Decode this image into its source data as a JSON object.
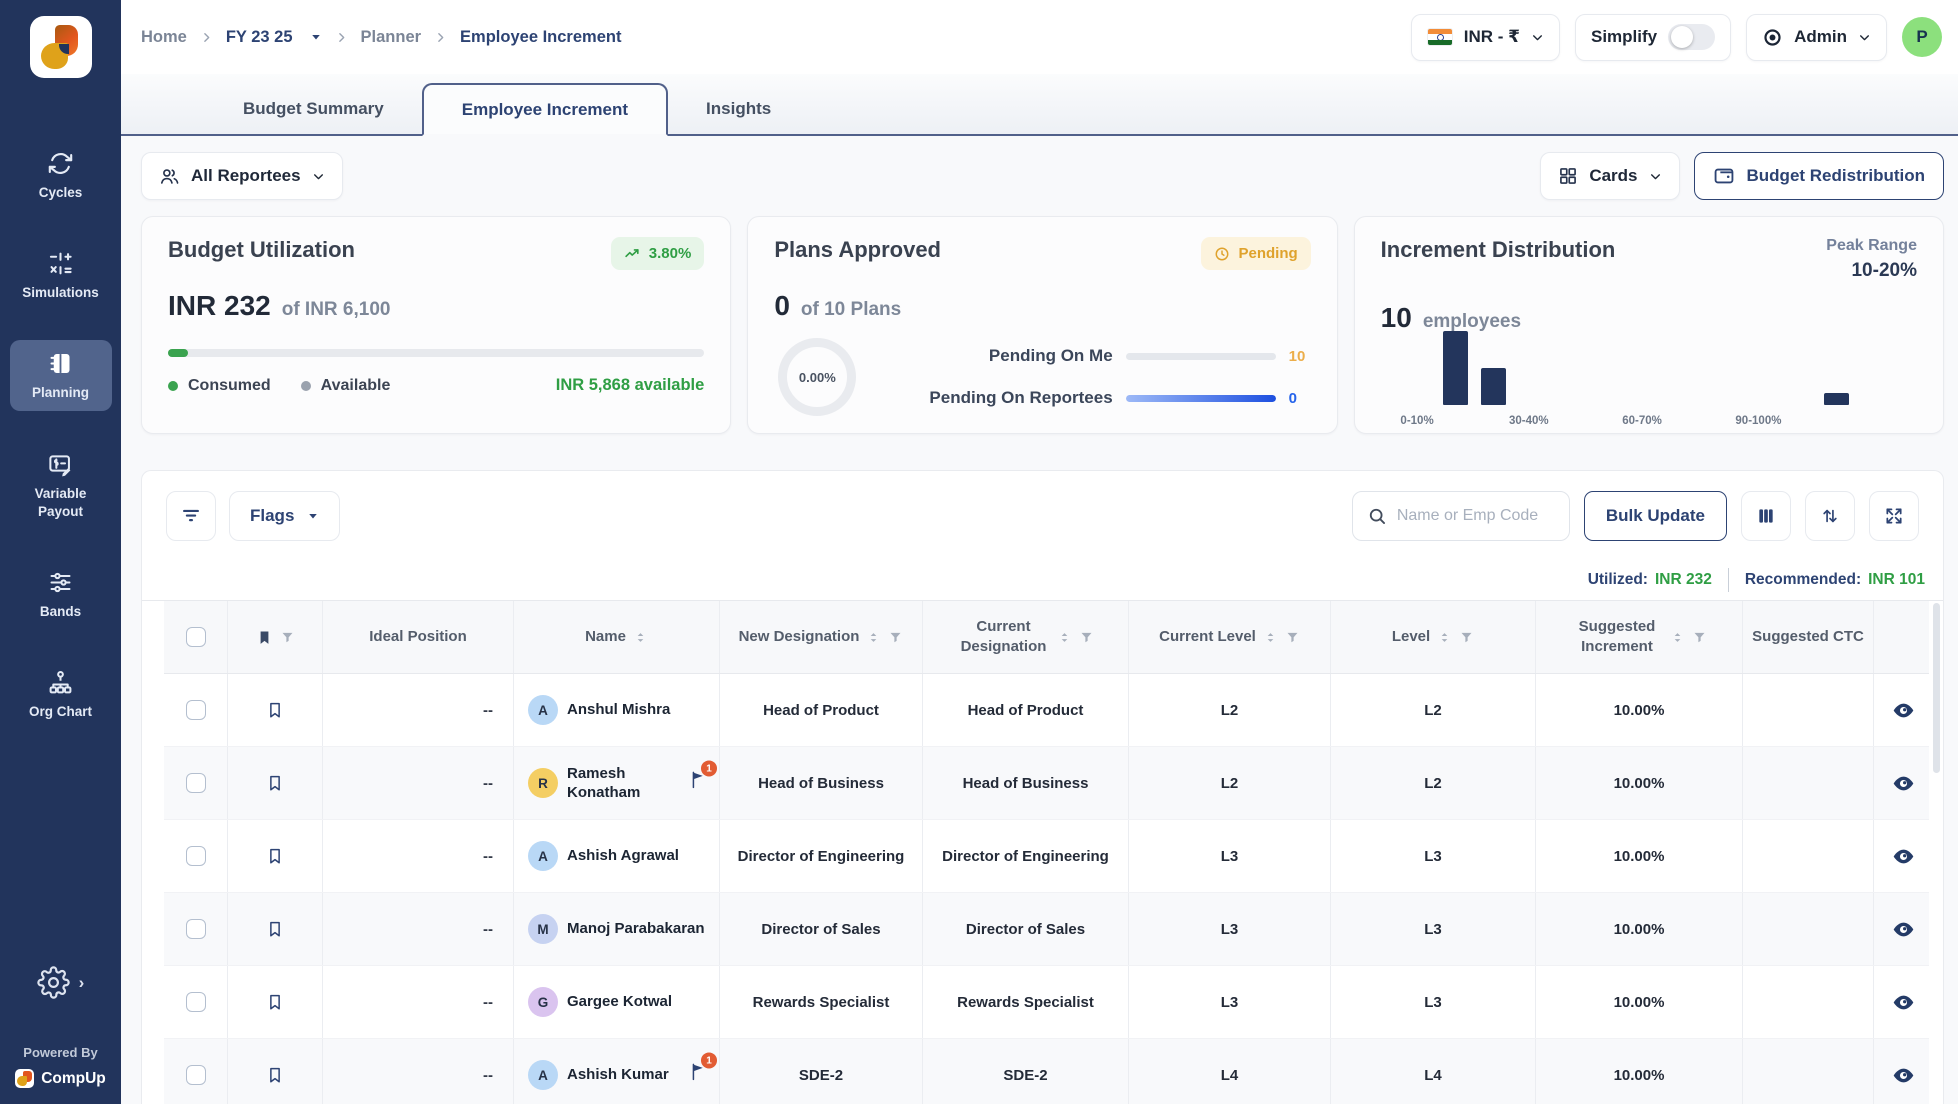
{
  "colors": {
    "sidebar_bg": "#22345c",
    "accent_navy": "#2d4373",
    "green": "#2f9e44",
    "amber": "#dfa22c",
    "blue": "#2563eb",
    "bar_navy": "#23355c",
    "avatar_green": "#8ce07d"
  },
  "sidebar": {
    "items": [
      {
        "label": "Cycles",
        "icon": "cycles-icon",
        "active": false
      },
      {
        "label": "Simulations",
        "icon": "simulations-icon",
        "active": false
      },
      {
        "label": "Planning",
        "icon": "planning-icon",
        "active": true
      },
      {
        "label": "Variable Payout",
        "icon": "variable-payout-icon",
        "active": false
      },
      {
        "label": "Bands",
        "icon": "bands-icon",
        "active": false
      },
      {
        "label": "Org Chart",
        "icon": "org-chart-icon",
        "active": false
      }
    ],
    "powered_by": "Powered By",
    "brand": "CompUp"
  },
  "header": {
    "breadcrumb": [
      {
        "label": "Home",
        "strong": false,
        "dropdown": false
      },
      {
        "label": "FY 23 25",
        "strong": true,
        "dropdown": true
      },
      {
        "label": "Planner",
        "strong": false,
        "dropdown": false
      },
      {
        "label": "Employee Increment",
        "strong": true,
        "dropdown": false
      }
    ],
    "currency": "INR - ₹",
    "simplify_label": "Simplify",
    "simplify_on": false,
    "role_label": "Admin",
    "avatar_initial": "P"
  },
  "tabs": [
    {
      "label": "Budget Summary",
      "active": false
    },
    {
      "label": "Employee Increment",
      "active": true
    },
    {
      "label": "Insights",
      "active": false
    }
  ],
  "controls": {
    "reportees_label": "All Reportees",
    "cards_label": "Cards",
    "budget_redistribution_label": "Budget Redistribution"
  },
  "cards": {
    "budget_utilization": {
      "title": "Budget Utilization",
      "badge": "3.80%",
      "amount": "INR 232",
      "of_total": "of INR 6,100",
      "progress_pct": 3.8,
      "consumed_label": "Consumed",
      "available_label": "Available",
      "available_text": "INR 5,868 available"
    },
    "plans_approved": {
      "title": "Plans Approved",
      "badge": "Pending",
      "count": "0",
      "of_total": "of 10 Plans",
      "donut_pct": "0.00%",
      "rows": [
        {
          "label": "Pending On Me",
          "value": "10",
          "value_color": "#ecae4b",
          "fill_pct": 0,
          "fill_color": "#e4e7ec"
        },
        {
          "label": "Pending On Reportees",
          "value": "0",
          "value_color": "#2563eb",
          "fill_pct": 100,
          "fill_color": "linear-gradient(90deg,#9db9f7,#1d4fe0)"
        }
      ]
    },
    "increment_distribution": {
      "title": "Increment Distribution",
      "peak_range_label": "Peak Range",
      "peak_range": "10-20%",
      "count": "10",
      "count_suffix": "employees"
    }
  },
  "chart_data": {
    "type": "bar",
    "title": "Increment Distribution",
    "categories": [
      "0-10%",
      "10-20%",
      "20-30%",
      "30-40%",
      "40-50%",
      "50-60%",
      "60-70%",
      "70-80%",
      "80-90%",
      "90-100%",
      "100-110%",
      "110%+"
    ],
    "values": [
      0,
      6,
      3,
      0,
      0,
      0,
      0,
      0,
      0,
      0,
      0,
      1
    ],
    "shown_ticks": [
      "0-10%",
      "",
      "",
      "30-40%",
      "",
      "",
      "60-70%",
      "",
      "",
      "90-100%",
      "",
      ""
    ],
    "xlabel": "",
    "ylabel": "employees",
    "ylim": [
      0,
      6
    ],
    "bar_color": "#23355c",
    "grid": false,
    "legend": "none"
  },
  "table": {
    "toolbar": {
      "flags_label": "Flags",
      "search_placeholder": "Name or Emp Code",
      "bulk_update_label": "Bulk Update"
    },
    "summary": {
      "utilized_label": "Utilized:",
      "utilized_value": "INR 232",
      "recommended_label": "Recommended:",
      "recommended_value": "INR 101"
    },
    "columns": [
      {
        "key": "ideal",
        "label": "Ideal Position",
        "sort": false,
        "filter": false
      },
      {
        "key": "name",
        "label": "Name",
        "sort": true,
        "filter": false
      },
      {
        "key": "new_desig",
        "label": "New Designation",
        "sort": true,
        "filter": true
      },
      {
        "key": "cur_desig",
        "label": "Current Designation",
        "sort": true,
        "filter": true
      },
      {
        "key": "cur_level",
        "label": "Current Level",
        "sort": true,
        "filter": true
      },
      {
        "key": "level",
        "label": "Level",
        "sort": true,
        "filter": true
      },
      {
        "key": "sugg_inc",
        "label": "Suggested Increment",
        "sort": true,
        "filter": true
      },
      {
        "key": "sugg_ctc",
        "label": "Suggested CTC",
        "sort": false,
        "filter": false
      }
    ],
    "rows": [
      {
        "ideal": "--",
        "name": "Anshul Mishra",
        "initial": "A",
        "avatar_bg": "#b9d8f6",
        "flag": null,
        "new_desig": "Head of Product",
        "cur_desig": "Head of Product",
        "cur_level": "L2",
        "level": "L2",
        "sugg_inc": "10.00%",
        "sugg_ctc": ""
      },
      {
        "ideal": "--",
        "name": "Ramesh Konatham",
        "initial": "R",
        "avatar_bg": "#f4ce63",
        "flag": "1",
        "new_desig": "Head of Business",
        "cur_desig": "Head of Business",
        "cur_level": "L2",
        "level": "L2",
        "sugg_inc": "10.00%",
        "sugg_ctc": ""
      },
      {
        "ideal": "--",
        "name": "Ashish Agrawal",
        "initial": "A",
        "avatar_bg": "#b9d8f6",
        "flag": null,
        "new_desig": "Director of Engineering",
        "cur_desig": "Director of Engineering",
        "cur_level": "L3",
        "level": "L3",
        "sugg_inc": "10.00%",
        "sugg_ctc": ""
      },
      {
        "ideal": "--",
        "name": "Manoj Parabakaran",
        "initial": "M",
        "avatar_bg": "#c6d2f1",
        "flag": null,
        "new_desig": "Director of Sales",
        "cur_desig": "Director of Sales",
        "cur_level": "L3",
        "level": "L3",
        "sugg_inc": "10.00%",
        "sugg_ctc": ""
      },
      {
        "ideal": "--",
        "name": "Gargee Kotwal",
        "initial": "G",
        "avatar_bg": "#dac4ef",
        "flag": null,
        "new_desig": "Rewards Specialist",
        "cur_desig": "Rewards Specialist",
        "cur_level": "L3",
        "level": "L3",
        "sugg_inc": "10.00%",
        "sugg_ctc": ""
      },
      {
        "ideal": "--",
        "name": "Ashish Kumar",
        "initial": "A",
        "avatar_bg": "#b9d8f6",
        "flag": "1",
        "new_desig": "SDE-2",
        "cur_desig": "SDE-2",
        "cur_level": "L4",
        "level": "L4",
        "sugg_inc": "10.00%",
        "sugg_ctc": ""
      }
    ]
  }
}
